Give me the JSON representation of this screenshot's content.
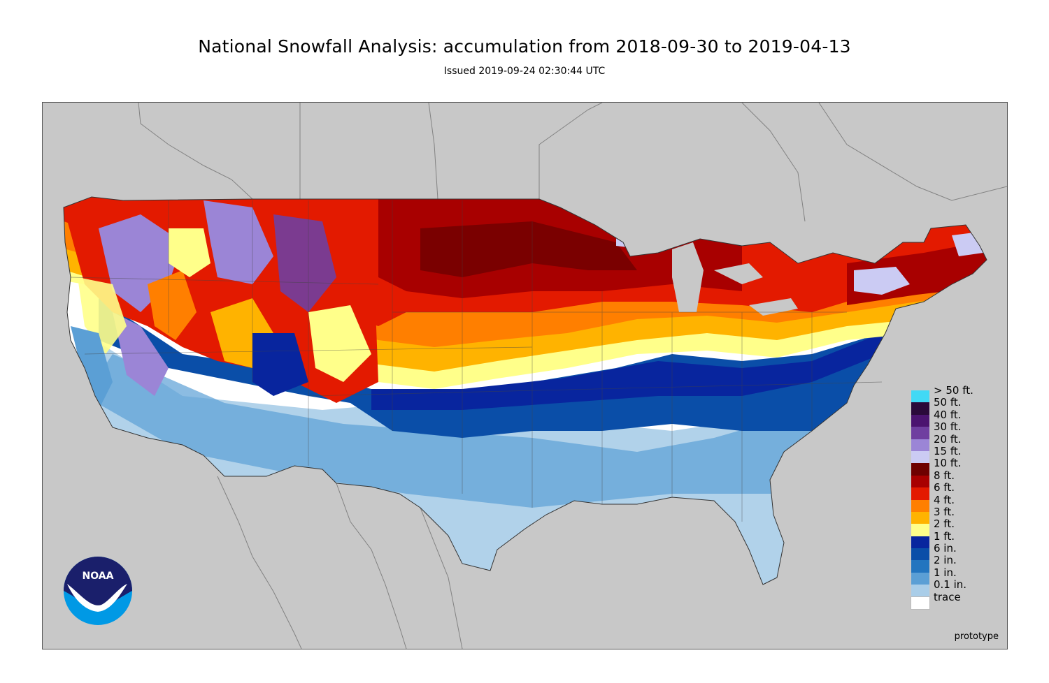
{
  "title": "National Snowfall Analysis: accumulation from 2018-09-30 to 2019-04-13",
  "subtitle": "Issued 2019-09-24 02:30:44 UTC",
  "footer_label": "prototype",
  "logo_text": "NOAA",
  "map_background": "#c8c8c8",
  "legend": [
    {
      "label": "> 50 ft.",
      "color": "#41d9f5"
    },
    {
      "label": "50 ft.",
      "color": "#2a0a3a"
    },
    {
      "label": "40 ft.",
      "color": "#4b1470"
    },
    {
      "label": "30 ft.",
      "color": "#6f3fa0"
    },
    {
      "label": "20 ft.",
      "color": "#9b85d6"
    },
    {
      "label": "15 ft.",
      "color": "#cbcbf3"
    },
    {
      "label": "10 ft.",
      "color": "#6e0000"
    },
    {
      "label": "8 ft.",
      "color": "#a80000"
    },
    {
      "label": "6 ft.",
      "color": "#e31a00"
    },
    {
      "label": "4 ft.",
      "color": "#ff7f00"
    },
    {
      "label": "3 ft.",
      "color": "#ffb300"
    },
    {
      "label": "2 ft.",
      "color": "#ffff8a"
    },
    {
      "label": "1 ft.",
      "color": "#08259e"
    },
    {
      "label": "6 in.",
      "color": "#0a4ea8"
    },
    {
      "label": "2 in.",
      "color": "#2375bf"
    },
    {
      "label": "1 in.",
      "color": "#5b9fd5"
    },
    {
      "label": "0.1 in.",
      "color": "#a9cde8"
    },
    {
      "label": "trace",
      "color": "#ffffff"
    }
  ]
}
